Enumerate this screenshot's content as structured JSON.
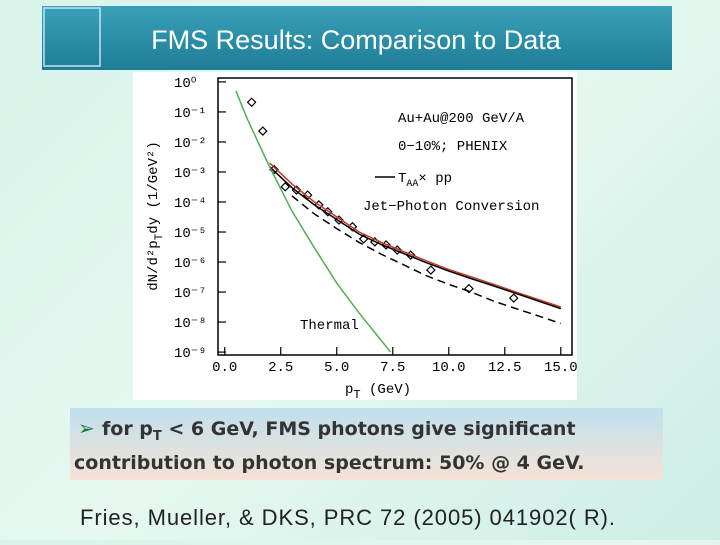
{
  "slide": {
    "title": "FMS Results: Comparison to Data",
    "bullet": [
      [
        "for p",
        "T",
        " < 6 GeV, FMS photons give significant"
      ],
      [
        "contribution to photon spectrum: 50% @ 4 GeV."
      ]
    ],
    "citation": "Fries, Mueller, & DKS, PRC 72 (2005) 041902( R)."
  },
  "chart_data": {
    "type": "line",
    "ylog": true,
    "xlabel": [
      "p",
      "T",
      " (GeV)"
    ],
    "ylabel": [
      "dN/d²p",
      "T",
      "dy (1/GeV²)"
    ],
    "annotations": {
      "system": "Au+Au@200 GeV/A",
      "centrality": "0−10%; PHENIX",
      "taa": [
        "T",
        "AA",
        "× pp"
      ],
      "jet": "Jet−Photon Conversion",
      "thermal": "Thermal"
    },
    "xlim": [
      -0.3,
      15.5
    ],
    "ylim": [
      8e-10,
      1.35
    ],
    "xticks": [
      {
        "value": 0,
        "label": "0.0"
      },
      {
        "value": 2.5,
        "label": "2.5"
      },
      {
        "value": 5,
        "label": "5.0"
      },
      {
        "value": 7.5,
        "label": "7.5"
      },
      {
        "value": 10,
        "label": "10.0"
      },
      {
        "value": 12.5,
        "label": "12.5"
      },
      {
        "value": 15,
        "label": "15.0"
      }
    ],
    "yticks": [
      {
        "value": 1,
        "label": "10⁰"
      },
      {
        "value": 0.1,
        "label": "10⁻¹"
      },
      {
        "value": 0.01,
        "label": "10⁻²"
      },
      {
        "value": 0.001,
        "label": "10⁻³"
      },
      {
        "value": 0.0001,
        "label": "10⁻⁴"
      },
      {
        "value": 1e-05,
        "label": "10⁻⁵"
      },
      {
        "value": 1e-06,
        "label": "10⁻⁶"
      },
      {
        "value": 1e-07,
        "label": "10⁻⁷"
      },
      {
        "value": 1e-08,
        "label": "10⁻⁸"
      },
      {
        "value": 1e-09,
        "label": "10⁻⁹"
      }
    ],
    "series": [
      {
        "style": "points",
        "color": "#000000",
        "x": [
          1.2,
          1.7,
          2.2,
          2.7,
          3.2,
          3.7,
          4.2,
          4.6,
          5.1,
          5.7,
          6.2,
          6.7,
          7.2,
          7.7,
          8.3,
          9.2,
          10.9,
          12.9
        ],
        "values": [
          0.21,
          0.023,
          0.0012,
          0.00032,
          0.00025,
          0.00017,
          8e-05,
          4.7e-05,
          2.5e-05,
          1.5e-05,
          5.9e-06,
          4.7e-06,
          3.7e-06,
          2.5e-06,
          1.7e-06,
          5.4e-07,
          1.3e-07,
          6.3e-08
        ]
      },
      {
        "style": "solid",
        "color": "#c0392b",
        "x": [
          2,
          3,
          4,
          5,
          6,
          7,
          8,
          9,
          10,
          11,
          12,
          13,
          14,
          15
        ],
        "values": [
          0.002,
          0.0004,
          0.0001,
          3.2e-05,
          1e-05,
          4.5e-06,
          2.2e-06,
          1.1e-06,
          5.6e-07,
          3.2e-07,
          1.8e-07,
          1e-07,
          5.6e-08,
          3.2e-08
        ]
      },
      {
        "style": "solid",
        "color": "#000000",
        "x": [
          2,
          3,
          4,
          5,
          6,
          7,
          8,
          9,
          10,
          11,
          12,
          13,
          14,
          15
        ],
        "values": [
          0.0015,
          0.0003,
          8e-05,
          2.6e-05,
          8.5e-06,
          3.8e-06,
          1.9e-06,
          9.5e-07,
          5e-07,
          2.8e-07,
          1.6e-07,
          9e-08,
          5e-08,
          2.8e-08
        ]
      },
      {
        "style": "dashed",
        "color": "#000000",
        "x": [
          3,
          4,
          5,
          6,
          7,
          8,
          9,
          10,
          11,
          12,
          13,
          14,
          15
        ],
        "values": [
          0.00016,
          4e-05,
          1.3e-05,
          4.5e-06,
          1.8e-06,
          8e-07,
          3.5e-07,
          1.8e-07,
          1e-07,
          5e-08,
          2.8e-08,
          1.6e-08,
          9e-09
        ]
      },
      {
        "style": "solid",
        "color": "#4caf50",
        "x": [
          0.5,
          1,
          2,
          3,
          4,
          5,
          6,
          7.4
        ],
        "values": [
          0.5,
          0.06,
          0.0015,
          5e-05,
          3e-06,
          2e-07,
          2e-08,
          1e-09
        ]
      }
    ]
  }
}
